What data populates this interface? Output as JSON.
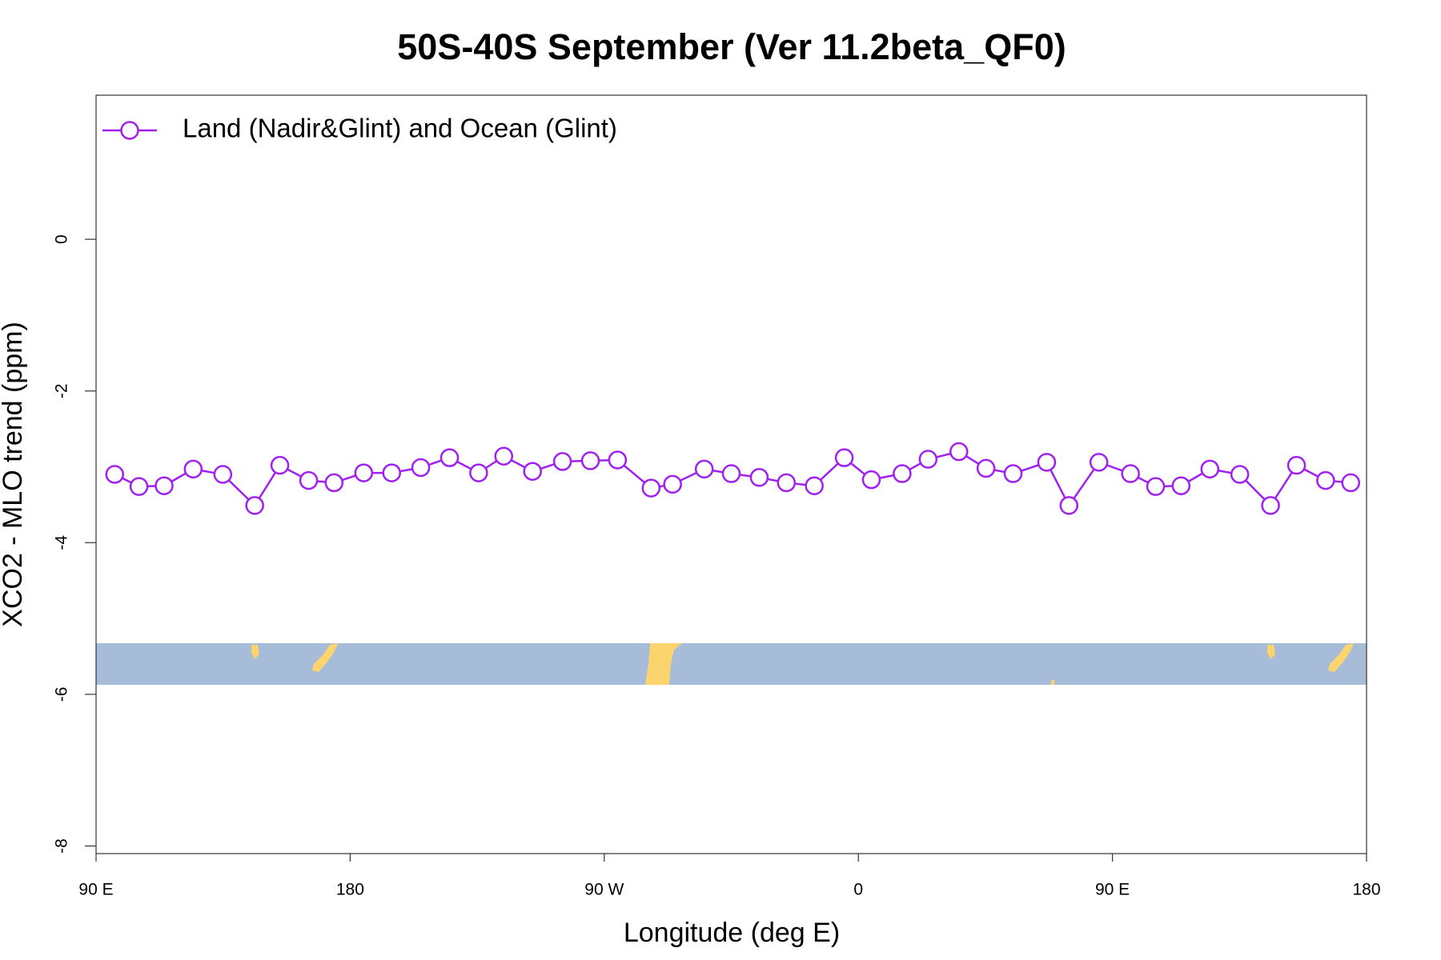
{
  "chart_data": {
    "type": "line",
    "title": "50S-40S September (Ver 11.2beta_QF0)",
    "x_label": "Longitude (deg E)",
    "y_label": "XCO2 - MLO trend (ppm)",
    "x": [
      96.6,
      105.2,
      114.1,
      124.4,
      134.9,
      146.2,
      155.1,
      165.3,
      174.3,
      184.8,
      194.7,
      205.0,
      215.2,
      225.5,
      234.4,
      244.6,
      255.2,
      265.1,
      274.7,
      286.6,
      294.2,
      305.4,
      315.0,
      324.9,
      334.5,
      344.4,
      355.0,
      364.6,
      375.5,
      384.7,
      395.6,
      405.2,
      414.8,
      426.7,
      434.6,
      445.2,
      456.4,
      465.3,
      474.3,
      484.5,
      495.1,
      506.0,
      515.2,
      525.5,
      534.4
    ],
    "series": [
      {
        "name": "Land (Nadir&Glint) and Ocean (Glint)",
        "color": "#a020f0",
        "values": [
          -3.1,
          -3.26,
          -3.25,
          -3.03,
          -3.1,
          -3.51,
          -2.98,
          -3.18,
          -3.21,
          -3.08,
          -3.08,
          -3.01,
          -2.88,
          -3.08,
          -2.86,
          -3.06,
          -2.93,
          -2.92,
          -2.91,
          -3.28,
          -3.23,
          -3.03,
          -3.09,
          -3.14,
          -3.21,
          -3.25,
          -2.88,
          -3.17,
          -3.09,
          -2.9,
          -2.8,
          -3.02,
          -3.09,
          -2.94,
          -3.51,
          -2.94,
          -3.09,
          -3.26,
          -3.25,
          -3.03,
          -3.1,
          -3.51,
          -2.98,
          -3.18,
          -3.21
        ]
      }
    ],
    "xlim": [
      90,
      540
    ],
    "xticks": [
      {
        "value": 90,
        "label": "90 E"
      },
      180,
      {
        "value": 270,
        "label": "90 W"
      },
      {
        "value": 360,
        "label": "0"
      },
      {
        "value": 450,
        "label": "90 E"
      },
      {
        "value": 540,
        "label": "180"
      }
    ],
    "ylim": [
      -8.1,
      1.9
    ],
    "yticks": [
      0,
      -2,
      -4,
      -6,
      -8
    ],
    "legend": "top-left"
  }
}
